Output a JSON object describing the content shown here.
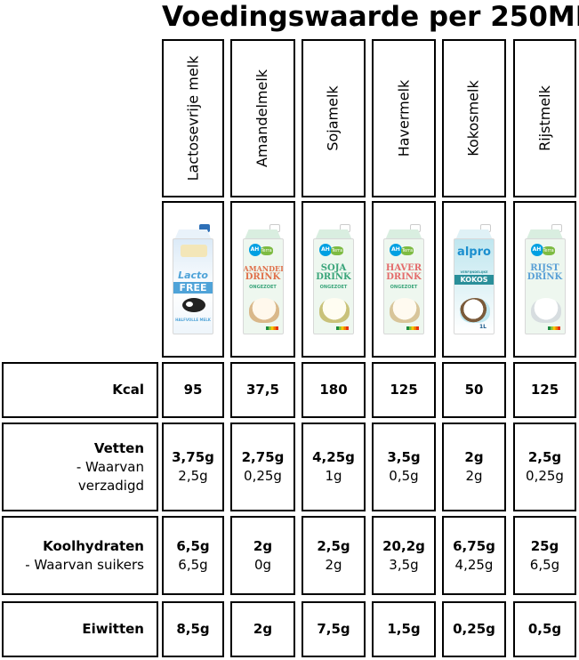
{
  "title": "Voedingswaarde per 250ML",
  "products": [
    {
      "name": "Lactosevrije melk",
      "package": {
        "brand": "",
        "line1": "Lacto",
        "line2": "FREE",
        "line3": "HALFVOLLE MELK"
      }
    },
    {
      "name": "Amandelmelk",
      "package": {
        "brand": "AH",
        "line1": "AMANDEL",
        "line2": "DRINK",
        "line3": "ONGEZOET"
      }
    },
    {
      "name": "Sojamelk",
      "package": {
        "brand": "AH",
        "line1": "SOJA",
        "line2": "DRINK",
        "line3": "ONGEZOET"
      }
    },
    {
      "name": "Havermelk",
      "package": {
        "brand": "AH",
        "line1": "HAVER",
        "line2": "DRINK",
        "line3": "ONGEZOET"
      }
    },
    {
      "name": "Kokosmelk",
      "package": {
        "brand": "alpro",
        "line1": "VERFIJNDELIJKE",
        "line2": "KOKOS",
        "line3": "1L"
      }
    },
    {
      "name": "Rijstmelk",
      "package": {
        "brand": "AH",
        "line1": "RIJST",
        "line2": "DRINK",
        "line3": ""
      }
    }
  ],
  "rows": [
    {
      "label": "Kcal",
      "sub_labels": [],
      "values": [
        [
          "95"
        ],
        [
          "37,5"
        ],
        [
          "180"
        ],
        [
          "125"
        ],
        [
          "50"
        ],
        [
          "125"
        ]
      ]
    },
    {
      "label": "Vetten",
      "sub_labels": [
        "- Waarvan",
        "verzadigd"
      ],
      "values": [
        [
          "3,75g",
          "2,5g"
        ],
        [
          "2,75g",
          "0,25g"
        ],
        [
          "4,25g",
          "1g"
        ],
        [
          "3,5g",
          "0,5g"
        ],
        [
          "2g",
          "2g"
        ],
        [
          "2,5g",
          "0,25g"
        ]
      ]
    },
    {
      "label": "Koolhydraten",
      "sub_labels": [
        "- Waarvan suikers"
      ],
      "values": [
        [
          "6,5g",
          "6,5g"
        ],
        [
          "2g",
          "0g"
        ],
        [
          "2,5g",
          "2g"
        ],
        [
          "20,2g",
          "3,5g"
        ],
        [
          "6,75g",
          "4,25g"
        ],
        [
          "25g",
          "6,5g"
        ]
      ]
    },
    {
      "label": "Eiwitten",
      "sub_labels": [],
      "values": [
        [
          "8,5g"
        ],
        [
          "2g"
        ],
        [
          "7,5g"
        ],
        [
          "1,5g"
        ],
        [
          "0,25g"
        ],
        [
          "0,5g"
        ]
      ]
    }
  ],
  "colors": {
    "border": "#000000",
    "ah_blue": "#00a0e2",
    "lacto_blue": "#4fa3d8",
    "amandel_text": "#e0704a",
    "soja_text": "#3aa57a",
    "haver_text": "#e46b6b",
    "kokos_blue": "#1c8fcf",
    "rijst_text": "#5aa0d6"
  }
}
